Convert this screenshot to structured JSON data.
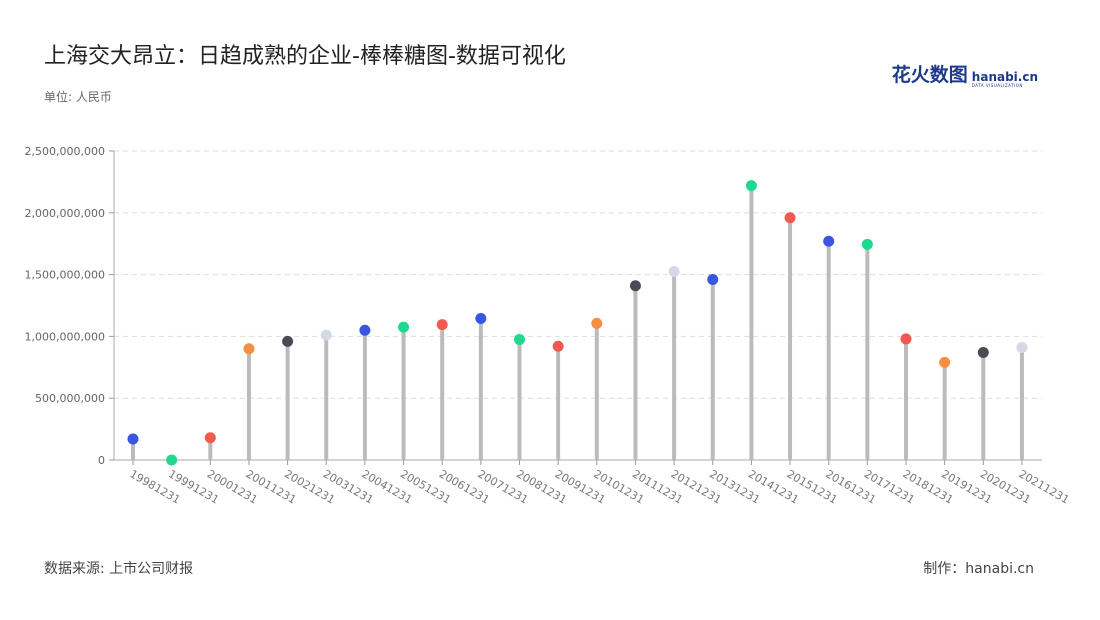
{
  "header": {
    "title": "上海交大昂立：日趋成熟的企业-棒棒糖图-数据可视化",
    "unit": "单位: 人民币"
  },
  "logo": {
    "cn": "花火数图",
    "en": "hanabi.cn",
    "en_sub": "DATA VISUALIZATION"
  },
  "footer": {
    "source": "数据来源: 上市公司财报",
    "credit": "制作：hanabi.cn"
  },
  "chart_data": {
    "type": "lollipop",
    "categories": [
      "19981231",
      "19991231",
      "20001231",
      "20011231",
      "20021231",
      "20031231",
      "20041231",
      "20051231",
      "20061231",
      "20071231",
      "20081231",
      "20091231",
      "20101231",
      "20111231",
      "20121231",
      "20131231",
      "20141231",
      "20151231",
      "20161231",
      "20171231",
      "20181231",
      "20191231",
      "20201231",
      "20211231"
    ],
    "values": [
      170000000,
      0,
      180000000,
      900000000,
      960000000,
      1010000000,
      1050000000,
      1075000000,
      1095000000,
      1145000000,
      975000000,
      920000000,
      1105000000,
      1410000000,
      1525000000,
      1460000000,
      2220000000,
      1960000000,
      1770000000,
      1745000000,
      980000000,
      790000000,
      870000000,
      910000000
    ],
    "dot_colors": [
      "#3a55e0",
      "#1ed98f",
      "#f25a4f",
      "#f58f45",
      "#4d4a55",
      "#d5d9e4",
      "#3a55e0",
      "#1ed98f",
      "#f25a4f",
      "#3a55e0",
      "#1ed98f",
      "#f25a4f",
      "#f58f45",
      "#4d4a55",
      "#d5d9e4",
      "#3a55e0",
      "#1ed98f",
      "#f25a4f",
      "#3a55e0",
      "#1ed98f",
      "#f25a4f",
      "#f58f45",
      "#4d4a55",
      "#d5d9e4"
    ],
    "stem_color": "#bbbbbb",
    "yticks": [
      0,
      500000000,
      1000000000,
      1500000000,
      2000000000,
      2500000000
    ],
    "ytick_labels": [
      "0",
      "500,000,000",
      "1,000,000,000",
      "1,500,000,000",
      "2,000,000,000",
      "2,500,000,000"
    ],
    "ylim": [
      0,
      2500000000
    ],
    "grid": true
  }
}
